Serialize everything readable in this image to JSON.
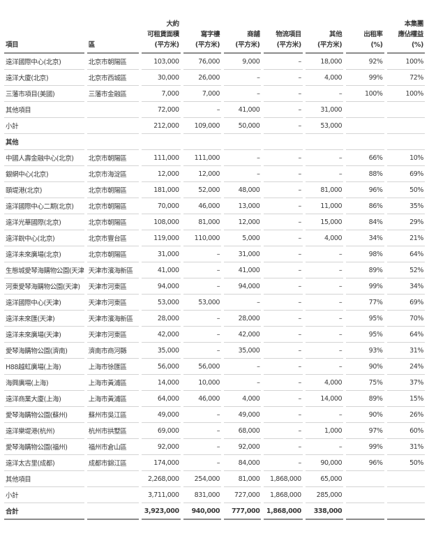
{
  "headers": [
    "項目",
    "區",
    "大約\n可租賃面積\n(平方米)",
    "寫字樓\n(平方米)",
    "商舖\n(平方米)",
    "物流項目\n(平方米)",
    "其他\n(平方米)",
    "出租率\n(%)",
    "本集團\n應佔權益\n(%)"
  ],
  "rows": [
    {
      "type": "row",
      "cells": [
        "遠洋國際中心(北京)",
        "北京市朝陽區",
        "103,000",
        "76,000",
        "9,000",
        "–",
        "18,000",
        "92%",
        "100%"
      ]
    },
    {
      "type": "row",
      "cells": [
        "遠洋大廈(北京)",
        "北京市西城區",
        "30,000",
        "26,000",
        "–",
        "–",
        "4,000",
        "99%",
        "72%"
      ]
    },
    {
      "type": "row",
      "cells": [
        "三藩市項目(美國)",
        "三藩市金融區",
        "7,000",
        "7,000",
        "–",
        "–",
        "–",
        "100%",
        "100%"
      ]
    },
    {
      "type": "row",
      "cells": [
        "其他項目",
        "",
        "72,000",
        "–",
        "41,000",
        "–",
        "31,000",
        "",
        ""
      ]
    },
    {
      "type": "row",
      "cells": [
        "小計",
        "",
        "212,000",
        "109,000",
        "50,000",
        "–",
        "53,000",
        "",
        ""
      ]
    },
    {
      "type": "section",
      "cells": [
        "其他",
        "",
        "",
        "",
        "",
        "",
        "",
        "",
        ""
      ]
    },
    {
      "type": "row",
      "cells": [
        "中國人壽金融中心(北京)",
        "北京市朝陽區",
        "111,000",
        "111,000",
        "–",
        "–",
        "–",
        "66%",
        "10%"
      ]
    },
    {
      "type": "row",
      "cells": [
        "銀網中心(北京)",
        "北京市海淀區",
        "12,000",
        "12,000",
        "–",
        "–",
        "–",
        "88%",
        "69%"
      ]
    },
    {
      "type": "row",
      "cells": [
        "頤堤港(北京)",
        "北京市朝陽區",
        "181,000",
        "52,000",
        "48,000",
        "–",
        "81,000",
        "96%",
        "50%"
      ]
    },
    {
      "type": "row",
      "cells": [
        "遠洋國際中心二期(北京)",
        "北京市朝陽區",
        "70,000",
        "46,000",
        "13,000",
        "–",
        "11,000",
        "86%",
        "35%"
      ]
    },
    {
      "type": "row",
      "cells": [
        "遠洋光華國際(北京)",
        "北京市朝陽區",
        "108,000",
        "81,000",
        "12,000",
        "–",
        "15,000",
        "84%",
        "29%"
      ]
    },
    {
      "type": "row",
      "cells": [
        "遠洋銳中心(北京)",
        "北京市豐台區",
        "119,000",
        "110,000",
        "5,000",
        "–",
        "4,000",
        "34%",
        "21%"
      ]
    },
    {
      "type": "row",
      "cells": [
        "遠洋未來廣場(北京)",
        "北京市朝陽區",
        "31,000",
        "–",
        "31,000",
        "–",
        "–",
        "98%",
        "64%"
      ]
    },
    {
      "type": "row",
      "cells": [
        "生態城愛琴海購物公園(天津)",
        "天津市濱海新區",
        "41,000",
        "–",
        "41,000",
        "–",
        "–",
        "89%",
        "52%"
      ]
    },
    {
      "type": "row",
      "cells": [
        "河東愛琴海購物公園(天津)",
        "天津市河東區",
        "94,000",
        "–",
        "94,000",
        "–",
        "–",
        "99%",
        "34%"
      ]
    },
    {
      "type": "row",
      "cells": [
        "遠洋國際中心(天津)",
        "天津市河東區",
        "53,000",
        "53,000",
        "–",
        "–",
        "–",
        "77%",
        "69%"
      ]
    },
    {
      "type": "row",
      "cells": [
        "遠洋未來匯(天津)",
        "天津市濱海新區",
        "28,000",
        "–",
        "28,000",
        "–",
        "–",
        "95%",
        "70%"
      ]
    },
    {
      "type": "row",
      "cells": [
        "遠洋未來廣場(天津)",
        "天津市河東區",
        "42,000",
        "–",
        "42,000",
        "–",
        "–",
        "95%",
        "64%"
      ]
    },
    {
      "type": "row",
      "cells": [
        "愛琴海購物公園(濟南)",
        "濟南市商河縣",
        "35,000",
        "–",
        "35,000",
        "–",
        "–",
        "93%",
        "31%"
      ]
    },
    {
      "type": "row",
      "cells": [
        "H88越虹廣場(上海)",
        "上海市徐匯區",
        "56,000",
        "56,000",
        "–",
        "–",
        "–",
        "90%",
        "24%"
      ]
    },
    {
      "type": "row",
      "cells": [
        "海興廣場(上海)",
        "上海市黃浦區",
        "14,000",
        "10,000",
        "–",
        "–",
        "4,000",
        "75%",
        "37%"
      ]
    },
    {
      "type": "row",
      "cells": [
        "遠洋商業大廈(上海)",
        "上海市黃浦區",
        "64,000",
        "46,000",
        "4,000",
        "–",
        "14,000",
        "89%",
        "15%"
      ]
    },
    {
      "type": "row",
      "cells": [
        "愛琴海購物公園(蘇州)",
        "蘇州市吳江區",
        "49,000",
        "–",
        "49,000",
        "–",
        "–",
        "90%",
        "26%"
      ]
    },
    {
      "type": "row",
      "cells": [
        "遠洋樂堤港(杭州)",
        "杭州市拱墅區",
        "69,000",
        "–",
        "68,000",
        "–",
        "1,000",
        "97%",
        "60%"
      ]
    },
    {
      "type": "row",
      "cells": [
        "愛琴海購物公園(福州)",
        "福州市倉山區",
        "92,000",
        "–",
        "92,000",
        "–",
        "–",
        "99%",
        "31%"
      ]
    },
    {
      "type": "row",
      "cells": [
        "遠洋太古里(成都)",
        "成都市錦江區",
        "174,000",
        "–",
        "84,000",
        "–",
        "90,000",
        "96%",
        "50%"
      ]
    },
    {
      "type": "row",
      "cells": [
        "其他項目",
        "",
        "2,268,000",
        "254,000",
        "81,000",
        "1,868,000",
        "65,000",
        "",
        ""
      ]
    },
    {
      "type": "row",
      "cells": [
        "小計",
        "",
        "3,711,000",
        "831,000",
        "727,000",
        "1,868,000",
        "285,000",
        "",
        ""
      ]
    },
    {
      "type": "total",
      "cells": [
        "合計",
        "",
        "3,923,000",
        "940,000",
        "777,000",
        "1,868,000",
        "338,000",
        "",
        ""
      ]
    }
  ]
}
